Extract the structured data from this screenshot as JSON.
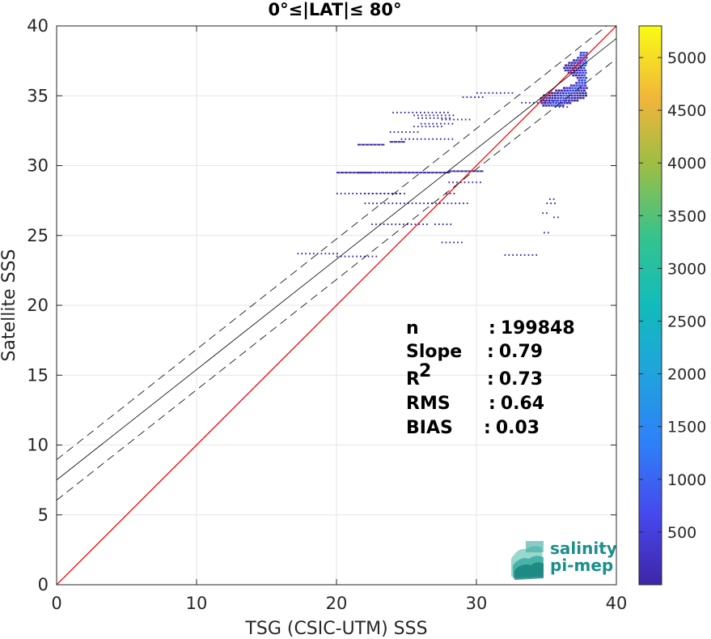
{
  "chart_data": {
    "type": "scatter",
    "title": "0°≤|LAT|≤ 80°",
    "xlabel": "TSG (CSIC-UTM) SSS",
    "ylabel": "Satellite SSS",
    "xlim": [
      0,
      40
    ],
    "ylim": [
      0,
      40
    ],
    "xticks": [
      "0",
      "10",
      "20",
      "30",
      "40"
    ],
    "yticks": [
      "0",
      "5",
      "10",
      "15",
      "20",
      "25",
      "30",
      "35",
      "40"
    ],
    "grid": true,
    "reference_line": {
      "slope": 1,
      "intercept": 0,
      "color": "#ff0000"
    },
    "regression_line": {
      "slope": 0.79,
      "intercept": 7.5,
      "color": "#000000"
    },
    "confidence_offset": 1.45,
    "stats": [
      {
        "label": "n",
        "sep": ":",
        "value": "199848"
      },
      {
        "label": "Slope",
        "sep": ":",
        "value": "0.79"
      },
      {
        "label": "R",
        "sup": "2",
        "sep": ":",
        "value": "0.73"
      },
      {
        "label": "RMS",
        "sep": ":",
        "value": "0.64"
      },
      {
        "label": "BIAS",
        "sep": ":",
        "value": "0.03"
      }
    ],
    "colorbar": {
      "ticks": [
        "500",
        "1000",
        "1500",
        "2000",
        "2500",
        "3000",
        "3500",
        "4000",
        "4500",
        "5000"
      ],
      "tick_values": [
        500,
        1000,
        1500,
        2000,
        2500,
        3000,
        3500,
        4000,
        4500,
        5000
      ],
      "range": [
        0,
        5300
      ],
      "colormap": "parula"
    },
    "density_segments": [
      [
        17.2,
        20.2,
        23.7
      ],
      [
        20.0,
        23.0,
        23.5
      ],
      [
        21.5,
        23.3,
        31.5
      ],
      [
        23.8,
        24.8,
        31.7
      ],
      [
        24.6,
        28.5,
        31.9
      ],
      [
        23.8,
        26.0,
        32.4
      ],
      [
        25.5,
        27.5,
        32.8
      ],
      [
        26.0,
        28.4,
        33.0
      ],
      [
        27.5,
        29.5,
        33.3
      ],
      [
        25.5,
        28.4,
        33.6
      ],
      [
        24.0,
        28.2,
        33.8
      ],
      [
        25.8,
        28.3,
        33.4
      ],
      [
        20.0,
        22.5,
        29.5
      ],
      [
        21.5,
        24.5,
        29.5
      ],
      [
        24.5,
        28.0,
        29.5
      ],
      [
        28.0,
        30.5,
        29.6
      ],
      [
        20.0,
        24.5,
        28.0
      ],
      [
        22.0,
        27.0,
        27.3
      ],
      [
        26.5,
        29.5,
        27.3
      ],
      [
        27.8,
        28.6,
        28.0
      ],
      [
        28.0,
        30.5,
        28.8
      ],
      [
        22.0,
        25.0,
        28.0
      ],
      [
        22.5,
        26.5,
        25.8
      ],
      [
        27.0,
        28.2,
        25.8
      ],
      [
        27.5,
        29.0,
        24.5
      ],
      [
        32.0,
        34.5,
        23.6
      ],
      [
        30.0,
        32.8,
        35.2
      ],
      [
        29.0,
        30.5,
        34.9
      ],
      [
        33.2,
        34.8,
        34.5
      ],
      [
        35.2,
        35.6,
        27.6
      ],
      [
        35.0,
        35.6,
        27.3
      ],
      [
        34.7,
        35.2,
        26.6
      ],
      [
        35.5,
        36.0,
        26.3
      ],
      [
        34.8,
        35.2,
        25.2
      ],
      [
        35.6,
        36.6,
        34.2
      ],
      [
        34.6,
        36.6,
        34.6
      ]
    ],
    "density_cluster": {
      "x": [
        34.5,
        37.8
      ],
      "y": [
        34.3,
        38.2
      ]
    }
  },
  "logo": {
    "line1": "salinity",
    "line2": "pi-mep"
  }
}
